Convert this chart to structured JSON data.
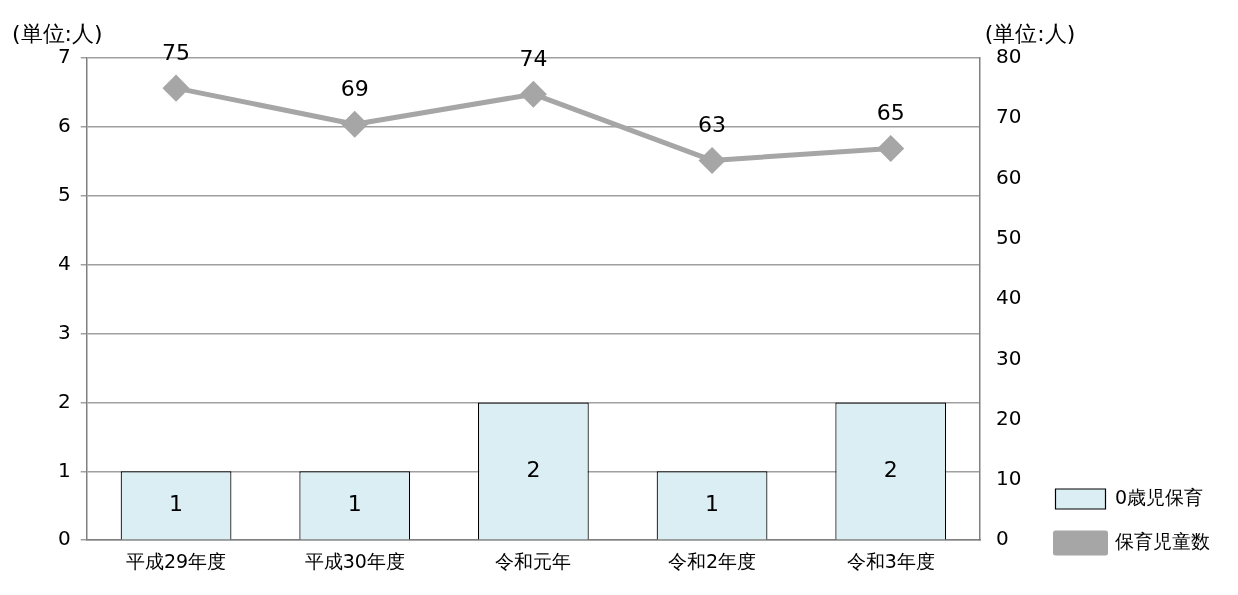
{
  "chart_data": {
    "type": "bar",
    "categories": [
      "平成29年度",
      "平成30年度",
      "令和元年",
      "令和2年度",
      "令和3年度"
    ],
    "series": [
      {
        "name": "0歳児保育",
        "color": "#daeef3",
        "values": [
          1,
          1,
          2,
          1,
          2
        ]
      },
      {
        "name": "保育児童数",
        "type": "line",
        "axis": "y2",
        "color": "#a6a6a6",
        "values": [
          75,
          69,
          74,
          63,
          65
        ]
      }
    ],
    "ylabel": "(単位:人)",
    "y2label": "(単位:人)",
    "ylim": [
      0,
      7
    ],
    "yticks": [
      0,
      1,
      2,
      3,
      4,
      5,
      6,
      7
    ],
    "y2lim": [
      0,
      80
    ],
    "y2ticks": [
      0,
      10,
      20,
      30,
      40,
      50,
      60,
      70,
      80
    ],
    "grid": "y",
    "legend": "right",
    "marker": "diamond",
    "line_style": "solid",
    "data_labels": true
  }
}
